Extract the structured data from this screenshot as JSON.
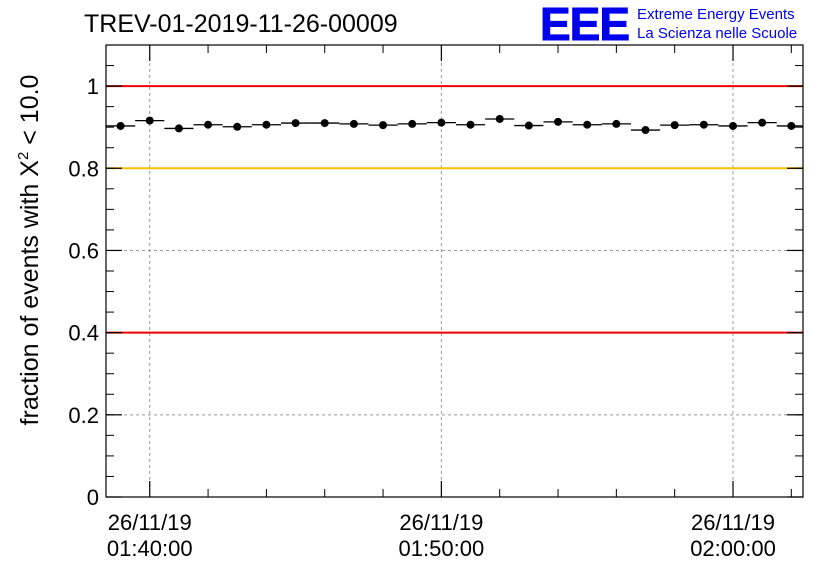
{
  "header": {
    "title": "TREV-01-2019-11-26-00009",
    "logo_mark": "EEE",
    "logo_line1": "Extreme Energy Events",
    "logo_line2": "La Scienza nelle Scuole"
  },
  "chart_data": {
    "type": "scatter",
    "title": "TREV-01-2019-11-26-00009",
    "xlabel": "",
    "ylabel": "fraction of events with X² < 10.0",
    "ylabel_main": "fraction of events with X",
    "ylabel_sup": "2",
    "ylabel_tail": " < 10.0",
    "ylim": [
      0,
      1.1
    ],
    "xlim_minutes": [
      -1.5,
      22.4
    ],
    "grid": true,
    "yticks": [
      {
        "value": 0,
        "label": "0"
      },
      {
        "value": 0.2,
        "label": "0.2"
      },
      {
        "value": 0.4,
        "label": "0.4"
      },
      {
        "value": 0.6,
        "label": "0.6"
      },
      {
        "value": 0.8,
        "label": "0.8"
      },
      {
        "value": 1,
        "label": "1"
      }
    ],
    "xticks": [
      {
        "minute": 0,
        "date": "26/11/19",
        "time": "01:40:00"
      },
      {
        "minute": 10,
        "date": "26/11/19",
        "time": "01:50:00"
      },
      {
        "minute": 20,
        "date": "26/11/19",
        "time": "02:00:00"
      }
    ],
    "reference_lines": [
      {
        "y": 1.0,
        "color": "#ee0000"
      },
      {
        "y": 0.8,
        "color": "#ffc000"
      },
      {
        "y": 0.4,
        "color": "#ee0000"
      }
    ],
    "series": [
      {
        "name": "fraction",
        "bin_width_minutes": 1.0,
        "x_minutes": [
          -1.0,
          0.0,
          1.0,
          2.0,
          3.0,
          4.0,
          5.0,
          6.0,
          7.0,
          8.0,
          9.0,
          10.0,
          11.0,
          12.0,
          13.0,
          14.0,
          15.0,
          16.0,
          17.0,
          18.0,
          19.0,
          20.0,
          21.0,
          22.0
        ],
        "values": [
          0.903,
          0.916,
          0.897,
          0.906,
          0.901,
          0.906,
          0.91,
          0.91,
          0.908,
          0.905,
          0.908,
          0.911,
          0.906,
          0.92,
          0.904,
          0.913,
          0.906,
          0.908,
          0.893,
          0.905,
          0.906,
          0.903,
          0.911,
          0.903
        ]
      }
    ]
  }
}
